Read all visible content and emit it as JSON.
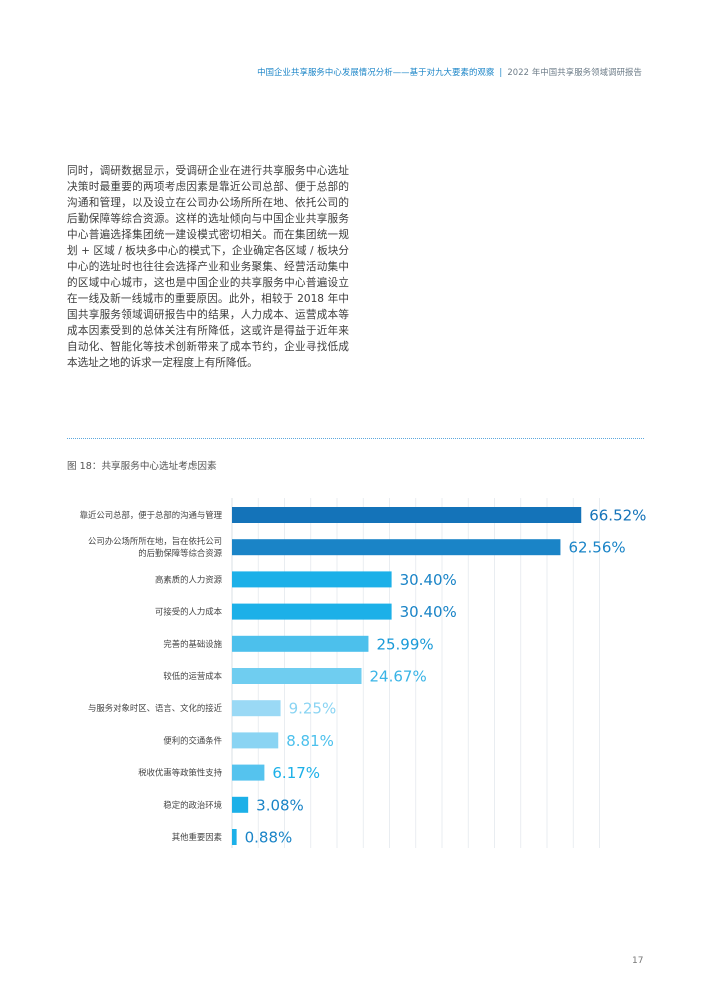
{
  "header": {
    "left": "中国企业共享服务中心发展情况分析——基于对九大要素的观察",
    "separator": "|",
    "right": "2022 年中国共享服务领域调研报告"
  },
  "body_text": "同时，调研数据显示，受调研企业在进行共享服务中心选址决策时最重要的两项考虑因素是靠近公司总部、便于总部的沟通和管理，以及设立在公司办公场所所在地、依托公司的后勤保障等综合资源。这样的选址倾向与中国企业共享服务中心普遍选择集团统一建设模式密切相关。而在集团统一规划 + 区域 / 板块多中心的模式下，企业确定各区域 / 板块分中心的选址时也往往会选择产业和业务聚集、经营活动集中的区域中心城市，这也是中国企业的共享服务中心普遍设立在一线及新一线城市的重要原因。此外，相较于 2018 年中国共享服务领域调研报告中的结果，人力成本、运营成本等成本因素受到的总体关注有所降低，这或许是得益于近年来自动化、智能化等技术创新带来了成本节约，企业寻找低成本选址之地的诉求一定程度上有所降低。",
  "figure_caption": "图 18：共享服务中心选址考虑因素",
  "chart_data": {
    "type": "bar",
    "orientation": "horizontal",
    "title": "图 18：共享服务中心选址考虑因素",
    "categories": [
      [
        "靠近公司总部，便于总部的沟通与管理"
      ],
      [
        "公司办公场所所在地，旨在依托公司",
        "的后勤保障等综合资源"
      ],
      [
        "高素质的人力资源"
      ],
      [
        "可接受的人力成本"
      ],
      [
        "完善的基础设施"
      ],
      [
        "较低的运营成本"
      ],
      [
        "与服务对象时区、语言、文化的接近"
      ],
      [
        "便利的交通条件"
      ],
      [
        "税收优惠等政策性支持"
      ],
      [
        "稳定的政治环境"
      ],
      [
        "其他重要因素"
      ]
    ],
    "values": [
      66.52,
      62.56,
      30.4,
      30.4,
      25.99,
      24.67,
      9.25,
      8.81,
      6.17,
      3.08,
      0.88
    ],
    "value_labels": [
      "66.52%",
      "62.56%",
      "30.40%",
      "30.40%",
      "25.99%",
      "24.67%",
      "9.25%",
      "8.81%",
      "6.17%",
      "3.08%",
      "0.88%"
    ],
    "bar_colors": [
      "#1473b9",
      "#1a84c7",
      "#1cb0e8",
      "#1cb0e8",
      "#4cc0ec",
      "#6fcdf0",
      "#9ad9f5",
      "#8ad4f3",
      "#55c3ee",
      "#1cb0e8",
      "#1cb0e8"
    ],
    "label_colors": [
      "#1473b9",
      "#1a84c7",
      "#1a84c7",
      "#1a84c7",
      "#1a9ad8",
      "#3ab4e6",
      "#8ad4f3",
      "#4cc0ec",
      "#1cb0e8",
      "#1a84c7",
      "#1a84c7"
    ],
    "xlim": [
      0,
      70
    ],
    "grid": true
  },
  "page_number": "17"
}
